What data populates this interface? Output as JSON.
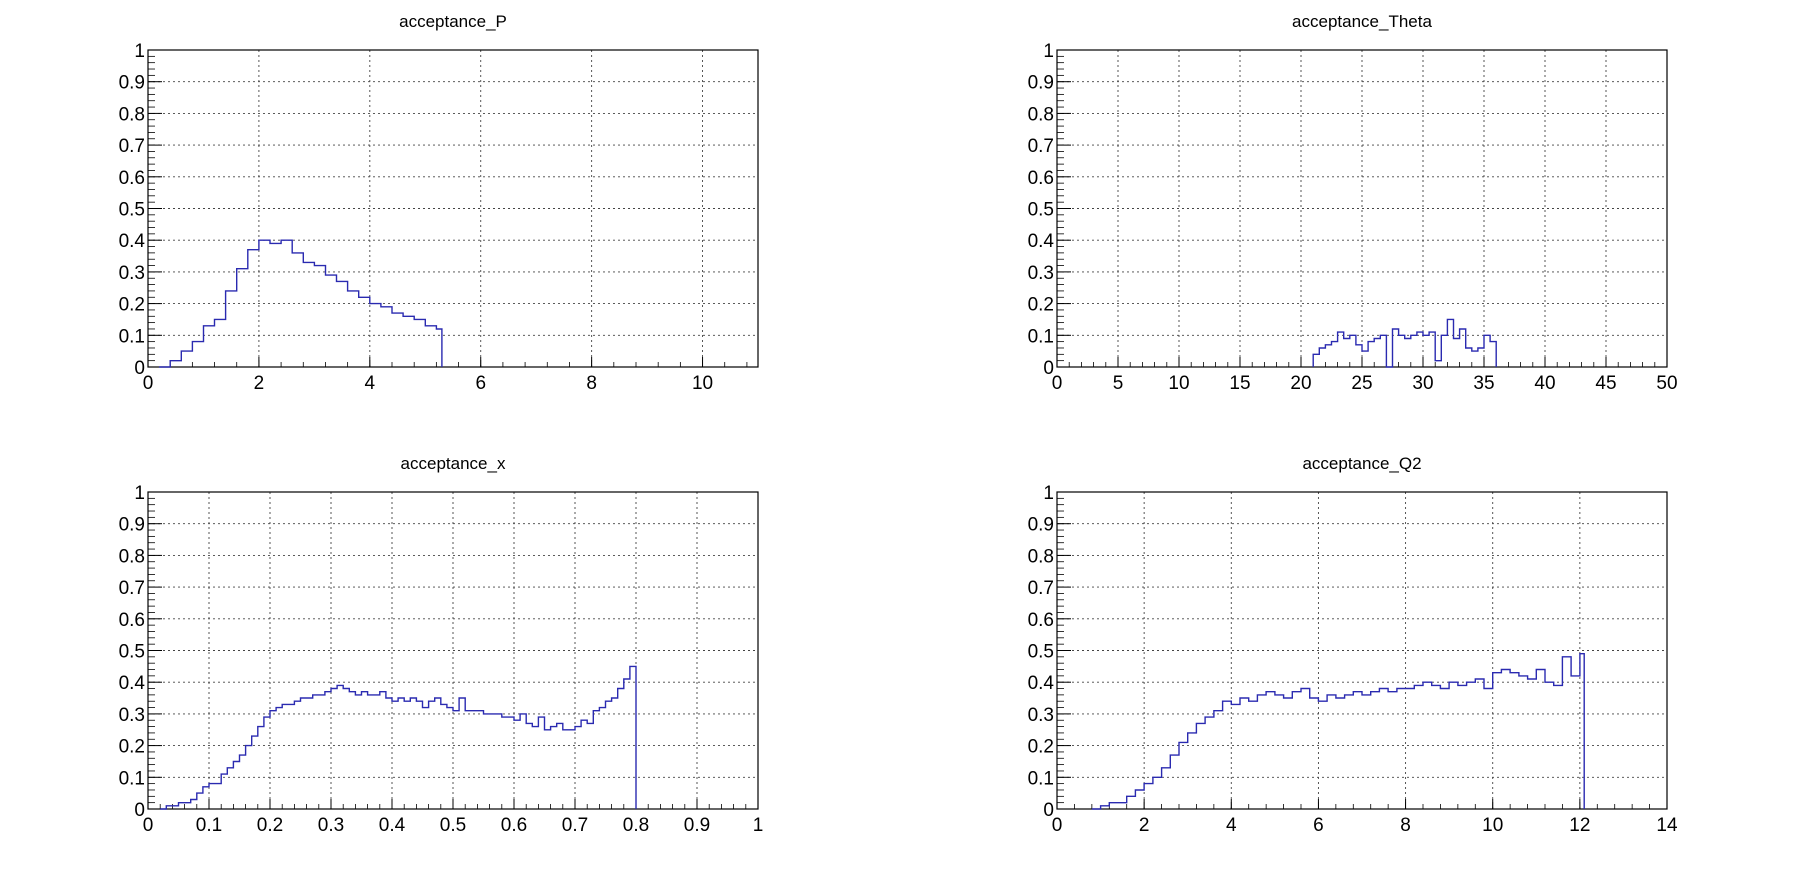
{
  "chart_data": [
    {
      "type": "step-histogram",
      "title": "acceptance_P",
      "xlabel": "",
      "ylabel": "",
      "xlim": [
        0,
        11
      ],
      "ylim": [
        0,
        1
      ],
      "xticks": [
        "0",
        "2",
        "4",
        "6",
        "8",
        "10"
      ],
      "xtick_values": [
        0,
        2,
        4,
        6,
        8,
        10
      ],
      "yticks": [
        "0",
        "0.1",
        "0.2",
        "0.3",
        "0.4",
        "0.5",
        "0.6",
        "0.7",
        "0.8",
        "0.9",
        "1"
      ],
      "grid": true,
      "line_color": "#2a2ab0",
      "series": [
        {
          "x": [
            0.2,
            0.4,
            0.6,
            0.8,
            1.0,
            1.2,
            1.4,
            1.6,
            1.8,
            2.0,
            2.2,
            2.4,
            2.6,
            2.8,
            3.0,
            3.2,
            3.4,
            3.6,
            3.8,
            4.0,
            4.2,
            4.4,
            4.6,
            4.8,
            5.0,
            5.2,
            5.3
          ],
          "values": [
            0.0,
            0.02,
            0.05,
            0.08,
            0.13,
            0.15,
            0.24,
            0.31,
            0.37,
            0.4,
            0.39,
            0.4,
            0.36,
            0.33,
            0.32,
            0.29,
            0.27,
            0.24,
            0.22,
            0.2,
            0.19,
            0.17,
            0.16,
            0.15,
            0.13,
            0.12,
            0.0
          ]
        }
      ]
    },
    {
      "type": "step-histogram",
      "title": "acceptance_Theta",
      "xlabel": "",
      "ylabel": "",
      "xlim": [
        0,
        50
      ],
      "ylim": [
        0,
        1
      ],
      "xticks": [
        "0",
        "5",
        "10",
        "15",
        "20",
        "25",
        "30",
        "35",
        "40",
        "45",
        "50"
      ],
      "xtick_values": [
        0,
        5,
        10,
        15,
        20,
        25,
        30,
        35,
        40,
        45,
        50
      ],
      "yticks": [
        "0",
        "0.1",
        "0.2",
        "0.3",
        "0.4",
        "0.5",
        "0.6",
        "0.7",
        "0.8",
        "0.9",
        "1"
      ],
      "grid": true,
      "line_color": "#2a2ab0",
      "series": [
        {
          "x": [
            21.0,
            21.5,
            22.0,
            22.5,
            23.0,
            23.5,
            24.0,
            24.5,
            25.0,
            25.5,
            26.0,
            26.5,
            27.0,
            27.5,
            28.0,
            28.5,
            29.0,
            29.5,
            30.0,
            30.5,
            31.0,
            31.5,
            32.0,
            32.5,
            33.0,
            33.5,
            34.0,
            34.5,
            35.0,
            35.5,
            36.0
          ],
          "values": [
            0.04,
            0.06,
            0.07,
            0.08,
            0.11,
            0.09,
            0.1,
            0.07,
            0.05,
            0.08,
            0.09,
            0.1,
            0.0,
            0.12,
            0.1,
            0.09,
            0.1,
            0.11,
            0.1,
            0.11,
            0.02,
            0.1,
            0.15,
            0.09,
            0.12,
            0.06,
            0.05,
            0.06,
            0.1,
            0.08,
            0.0
          ]
        }
      ]
    },
    {
      "type": "step-histogram",
      "title": "acceptance_x",
      "xlabel": "",
      "ylabel": "",
      "xlim": [
        0,
        1
      ],
      "ylim": [
        0,
        1
      ],
      "xticks": [
        "0",
        "0.1",
        "0.2",
        "0.3",
        "0.4",
        "0.5",
        "0.6",
        "0.7",
        "0.8",
        "0.9",
        "1"
      ],
      "xtick_values": [
        0,
        0.1,
        0.2,
        0.3,
        0.4,
        0.5,
        0.6,
        0.7,
        0.8,
        0.9,
        1
      ],
      "yticks": [
        "0",
        "0.1",
        "0.2",
        "0.3",
        "0.4",
        "0.5",
        "0.6",
        "0.7",
        "0.8",
        "0.9",
        "1"
      ],
      "grid": true,
      "line_color": "#2a2ab0",
      "series": [
        {
          "x": [
            0.02,
            0.03,
            0.04,
            0.05,
            0.06,
            0.07,
            0.08,
            0.09,
            0.1,
            0.11,
            0.12,
            0.13,
            0.14,
            0.15,
            0.16,
            0.17,
            0.18,
            0.19,
            0.2,
            0.21,
            0.22,
            0.23,
            0.24,
            0.25,
            0.26,
            0.27,
            0.28,
            0.29,
            0.3,
            0.31,
            0.32,
            0.33,
            0.34,
            0.35,
            0.36,
            0.37,
            0.38,
            0.39,
            0.4,
            0.41,
            0.42,
            0.43,
            0.44,
            0.45,
            0.46,
            0.47,
            0.48,
            0.49,
            0.5,
            0.51,
            0.52,
            0.53,
            0.54,
            0.55,
            0.56,
            0.57,
            0.58,
            0.59,
            0.6,
            0.61,
            0.62,
            0.63,
            0.64,
            0.65,
            0.66,
            0.67,
            0.68,
            0.69,
            0.7,
            0.71,
            0.72,
            0.73,
            0.74,
            0.75,
            0.76,
            0.77,
            0.78,
            0.79,
            0.8
          ],
          "values": [
            0.0,
            0.01,
            0.01,
            0.02,
            0.02,
            0.03,
            0.05,
            0.07,
            0.08,
            0.08,
            0.11,
            0.13,
            0.15,
            0.17,
            0.2,
            0.23,
            0.26,
            0.29,
            0.31,
            0.32,
            0.33,
            0.33,
            0.34,
            0.35,
            0.35,
            0.36,
            0.36,
            0.37,
            0.38,
            0.39,
            0.38,
            0.37,
            0.36,
            0.37,
            0.36,
            0.36,
            0.37,
            0.35,
            0.34,
            0.35,
            0.34,
            0.35,
            0.34,
            0.32,
            0.34,
            0.35,
            0.33,
            0.32,
            0.31,
            0.35,
            0.31,
            0.31,
            0.31,
            0.3,
            0.3,
            0.3,
            0.29,
            0.29,
            0.28,
            0.3,
            0.27,
            0.26,
            0.29,
            0.25,
            0.26,
            0.27,
            0.25,
            0.25,
            0.26,
            0.28,
            0.27,
            0.31,
            0.32,
            0.34,
            0.35,
            0.38,
            0.41,
            0.45,
            0.0
          ]
        }
      ]
    },
    {
      "type": "step-histogram",
      "title": "acceptance_Q2",
      "xlabel": "",
      "ylabel": "",
      "xlim": [
        0,
        14
      ],
      "ylim": [
        0,
        1
      ],
      "xticks": [
        "0",
        "2",
        "4",
        "6",
        "8",
        "10",
        "12",
        "14"
      ],
      "xtick_values": [
        0,
        2,
        4,
        6,
        8,
        10,
        12,
        14
      ],
      "yticks": [
        "0",
        "0.1",
        "0.2",
        "0.3",
        "0.4",
        "0.5",
        "0.6",
        "0.7",
        "0.8",
        "0.9",
        "1"
      ],
      "grid": true,
      "line_color": "#2a2ab0",
      "series": [
        {
          "x": [
            0.8,
            1.0,
            1.2,
            1.4,
            1.6,
            1.8,
            2.0,
            2.2,
            2.4,
            2.6,
            2.8,
            3.0,
            3.2,
            3.4,
            3.6,
            3.8,
            4.0,
            4.2,
            4.4,
            4.6,
            4.8,
            5.0,
            5.2,
            5.4,
            5.6,
            5.8,
            6.0,
            6.2,
            6.4,
            6.6,
            6.8,
            7.0,
            7.2,
            7.4,
            7.6,
            7.8,
            8.0,
            8.2,
            8.4,
            8.6,
            8.8,
            9.0,
            9.2,
            9.4,
            9.6,
            9.8,
            10.0,
            10.2,
            10.4,
            10.6,
            10.8,
            11.0,
            11.2,
            11.4,
            11.6,
            11.8,
            12.0,
            12.1
          ],
          "values": [
            0.0,
            0.01,
            0.02,
            0.02,
            0.04,
            0.06,
            0.08,
            0.1,
            0.13,
            0.17,
            0.21,
            0.24,
            0.27,
            0.29,
            0.31,
            0.34,
            0.33,
            0.35,
            0.34,
            0.36,
            0.37,
            0.36,
            0.35,
            0.37,
            0.38,
            0.35,
            0.34,
            0.36,
            0.35,
            0.36,
            0.37,
            0.36,
            0.37,
            0.38,
            0.37,
            0.38,
            0.38,
            0.39,
            0.4,
            0.39,
            0.38,
            0.4,
            0.39,
            0.4,
            0.41,
            0.38,
            0.43,
            0.44,
            0.43,
            0.42,
            0.41,
            0.44,
            0.4,
            0.39,
            0.48,
            0.42,
            0.49,
            0.0
          ]
        }
      ]
    }
  ]
}
